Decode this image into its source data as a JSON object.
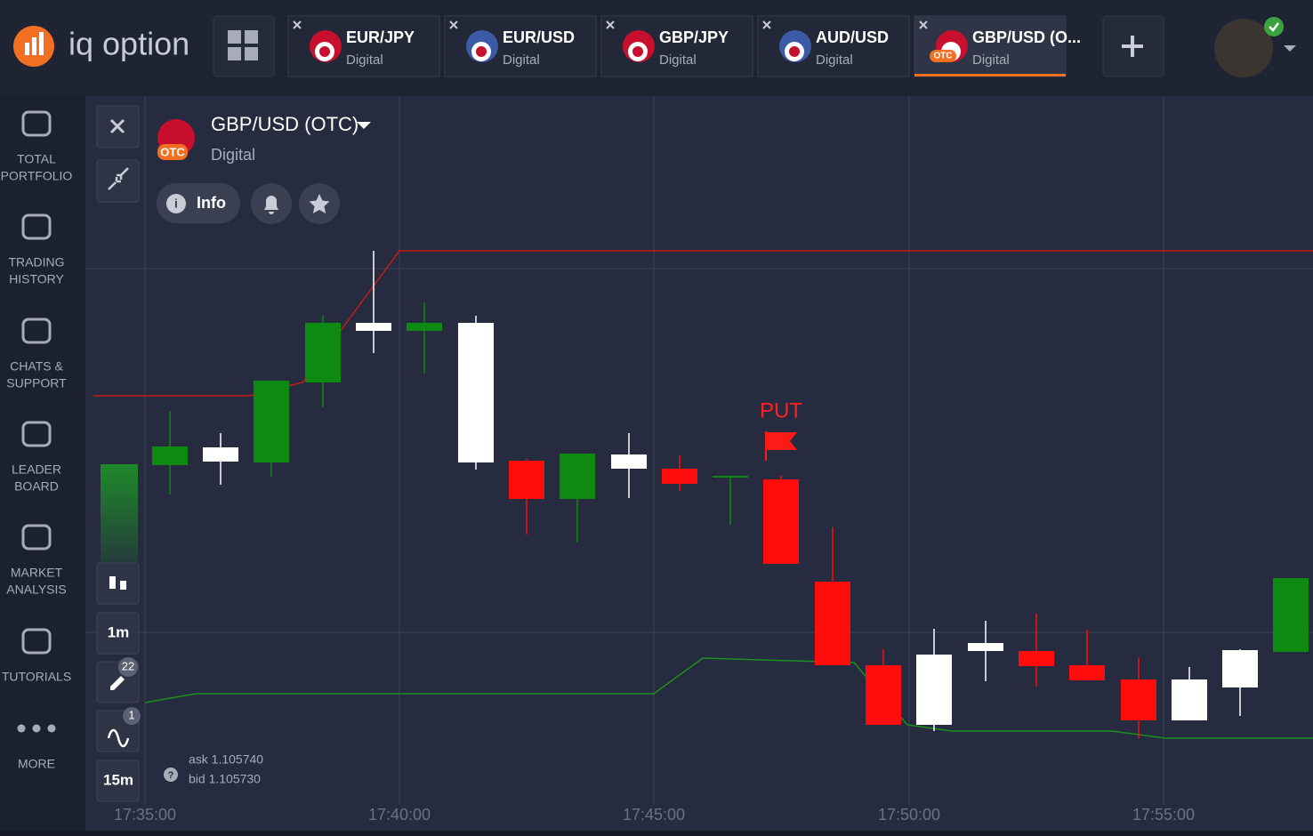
{
  "header": {
    "logo": "iq option",
    "tabs": [
      {
        "title": "EUR/JPY",
        "subtitle": "Digital"
      },
      {
        "title": "EUR/USD",
        "subtitle": "Digital"
      },
      {
        "title": "GBP/JPY",
        "subtitle": "Digital"
      },
      {
        "title": "AUD/USD",
        "subtitle": "Digital"
      },
      {
        "title": "GBP/USD (O...",
        "subtitle": "Digital",
        "badge": "OTC"
      }
    ]
  },
  "sidebar": [
    [
      "TOTAL",
      "PORTFOLIO"
    ],
    [
      "TRADING",
      "HISTORY"
    ],
    [
      "CHATS &",
      "SUPPORT"
    ],
    [
      "LEADER",
      "BOARD"
    ],
    [
      "MARKET",
      "ANALYSIS"
    ],
    [
      "TUTORIALS"
    ],
    [
      "MORE"
    ]
  ],
  "asset": {
    "title": "GBP/USD (OTC)",
    "subtitle": "Digital",
    "badge": "OTC",
    "info": "Info"
  },
  "toolbar": {
    "timeframe": "1m",
    "drawings": "22",
    "indicators": "1",
    "expiry": "15m"
  },
  "quote": {
    "ask": "ask 1.105740",
    "bid": "bid 1.105730"
  },
  "marker": "PUT",
  "time_labels": [
    "17:35:00",
    "17:40:00",
    "17:45:00",
    "17:50:00",
    "17:55:00"
  ]
}
